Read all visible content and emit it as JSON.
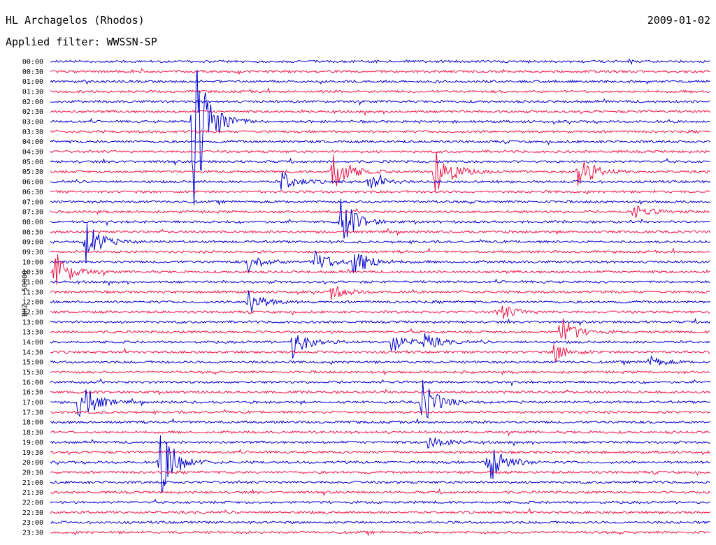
{
  "header": {
    "station": "HL Archagelos (Rhodos)",
    "date": "2009-01-02",
    "filter": "Applied filter: WWSSN-SP"
  },
  "chart_data": {
    "type": "helicorder",
    "channel_label": "BHZ - 50000",
    "row_labels": [
      "00:00",
      "00:30",
      "01:00",
      "01:30",
      "02:00",
      "02:30",
      "03:00",
      "03:30",
      "04:00",
      "04:30",
      "05:00",
      "05:30",
      "06:00",
      "06:30",
      "07:00",
      "07:30",
      "08:00",
      "08:30",
      "09:00",
      "09:30",
      "10:00",
      "10:30",
      "11:00",
      "11:30",
      "12:00",
      "12:30",
      "13:00",
      "13:30",
      "14:00",
      "14:30",
      "15:00",
      "15:30",
      "16:00",
      "16:30",
      "17:00",
      "17:30",
      "18:00",
      "18:30",
      "19:00",
      "19:30",
      "20:00",
      "20:30",
      "21:00",
      "21:30",
      "22:00",
      "22:30",
      "23:00",
      "23:30"
    ],
    "colors": [
      "#0000cc",
      "#ee1144"
    ],
    "minutes_per_row": 30,
    "events": [
      {
        "row": 6,
        "minute": 6.5,
        "amp": 9.5
      },
      {
        "row": 11,
        "minute": 12.8,
        "amp": 2.5
      },
      {
        "row": 11,
        "minute": 17.5,
        "amp": 3.0
      },
      {
        "row": 11,
        "minute": 24.0,
        "amp": 1.8
      },
      {
        "row": 12,
        "minute": 10.5,
        "amp": 1.2
      },
      {
        "row": 12,
        "minute": 14.5,
        "amp": 0.8
      },
      {
        "row": 15,
        "minute": 26.5,
        "amp": 0.8
      },
      {
        "row": 16,
        "minute": 13.2,
        "amp": 2.6
      },
      {
        "row": 18,
        "minute": 1.6,
        "amp": 2.2
      },
      {
        "row": 20,
        "minute": 9.0,
        "amp": 1.0
      },
      {
        "row": 20,
        "minute": 12.0,
        "amp": 1.3
      },
      {
        "row": 20,
        "minute": 13.8,
        "amp": 1.8
      },
      {
        "row": 21,
        "minute": 0.2,
        "amp": 2.2
      },
      {
        "row": 23,
        "minute": 12.8,
        "amp": 0.8
      },
      {
        "row": 24,
        "minute": 9.0,
        "amp": 1.3
      },
      {
        "row": 25,
        "minute": 20.4,
        "amp": 0.9
      },
      {
        "row": 27,
        "minute": 23.2,
        "amp": 1.6
      },
      {
        "row": 28,
        "minute": 11.0,
        "amp": 1.6
      },
      {
        "row": 28,
        "minute": 15.5,
        "amp": 1.0
      },
      {
        "row": 28,
        "minute": 17.0,
        "amp": 0.8
      },
      {
        "row": 29,
        "minute": 22.9,
        "amp": 1.0
      },
      {
        "row": 30,
        "minute": 27.2,
        "amp": 0.6
      },
      {
        "row": 34,
        "minute": 1.3,
        "amp": 2.5
      },
      {
        "row": 34,
        "minute": 16.9,
        "amp": 2.3
      },
      {
        "row": 38,
        "minute": 17.2,
        "amp": 0.8
      },
      {
        "row": 40,
        "minute": 5.0,
        "amp": 3.8
      },
      {
        "row": 40,
        "minute": 19.9,
        "amp": 2.5
      }
    ]
  }
}
